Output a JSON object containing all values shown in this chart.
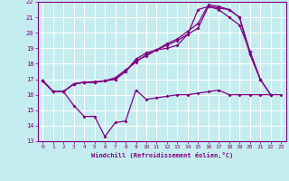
{
  "title": "",
  "xlabel": "Windchill (Refroidissement éolien,°C)",
  "ylabel": "",
  "xlim": [
    -0.5,
    23.5
  ],
  "ylim": [
    13,
    22
  ],
  "yticks": [
    13,
    14,
    15,
    16,
    17,
    18,
    19,
    20,
    21,
    22
  ],
  "xticks": [
    0,
    1,
    2,
    3,
    4,
    5,
    6,
    7,
    8,
    9,
    10,
    11,
    12,
    13,
    14,
    15,
    16,
    17,
    18,
    19,
    20,
    21,
    22,
    23
  ],
  "background_color": "#c5ecee",
  "grid_color": "#ffffff",
  "line_color": "#800080",
  "line1_x": [
    0,
    1,
    2,
    3,
    4,
    5,
    6,
    7,
    8,
    9,
    10,
    11,
    12,
    13,
    14,
    15,
    16,
    17,
    18,
    19,
    20,
    21,
    22,
    23
  ],
  "line1_y": [
    16.9,
    16.2,
    16.2,
    15.3,
    14.6,
    14.6,
    13.3,
    14.2,
    14.3,
    16.3,
    15.7,
    15.8,
    15.9,
    16.0,
    16.0,
    16.1,
    16.2,
    16.3,
    16.0,
    16.0,
    16.0,
    16.0,
    16.0,
    16.0
  ],
  "line2_x": [
    0,
    1,
    2,
    3,
    4,
    5,
    6,
    7,
    8,
    9,
    10,
    11,
    12,
    13,
    14,
    15,
    16,
    17,
    18,
    19,
    20,
    21,
    22,
    23
  ],
  "line2_y": [
    16.9,
    16.2,
    16.2,
    16.7,
    16.8,
    16.8,
    16.9,
    17.0,
    17.5,
    18.2,
    18.5,
    18.9,
    19.0,
    19.2,
    19.9,
    21.5,
    21.7,
    21.5,
    21.0,
    20.5,
    18.8,
    17.0,
    16.0,
    null
  ],
  "line3_x": [
    0,
    1,
    2,
    3,
    4,
    5,
    6,
    7,
    8,
    9,
    10,
    11,
    12,
    13,
    14,
    15,
    16,
    17,
    18,
    19,
    20,
    21,
    22,
    23
  ],
  "line3_y": [
    16.9,
    16.2,
    16.2,
    16.7,
    16.8,
    16.8,
    16.9,
    17.0,
    17.5,
    18.3,
    18.7,
    18.9,
    19.3,
    19.6,
    20.1,
    20.6,
    21.8,
    21.7,
    21.5,
    21.0,
    18.8,
    17.0,
    16.0,
    null
  ],
  "line4_x": [
    0,
    1,
    2,
    3,
    4,
    5,
    6,
    7,
    8,
    9,
    10,
    11,
    12,
    13,
    14,
    15,
    16,
    17,
    18,
    19,
    20,
    21,
    22,
    23
  ],
  "line4_y": [
    16.9,
    16.2,
    16.2,
    16.7,
    16.8,
    16.85,
    16.9,
    17.1,
    17.6,
    18.1,
    18.6,
    18.9,
    19.2,
    19.5,
    19.9,
    20.3,
    21.7,
    21.6,
    21.5,
    21.0,
    18.6,
    17.0,
    null,
    null
  ]
}
